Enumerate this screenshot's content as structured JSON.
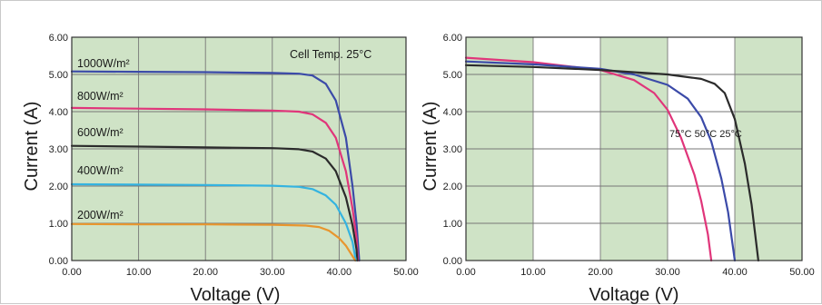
{
  "colors": {
    "plot_bg": "#cfe3c6",
    "white_band": "#ffffff",
    "grid": "#777777",
    "axis": "#333333"
  },
  "chart_data": [
    {
      "type": "line",
      "title": "",
      "xlabel": "Voltage (V)",
      "ylabel": "Current (A)",
      "xlim": [
        0,
        50
      ],
      "ylim": [
        0,
        6
      ],
      "x_ticks": [
        "0.00",
        "10.00",
        "20.00",
        "30.00",
        "40.00",
        "50.00"
      ],
      "y_ticks": [
        "0.00",
        "1.00",
        "2.00",
        "3.00",
        "4.00",
        "5.00",
        "6.00"
      ],
      "grid": true,
      "annotation": "Cell Temp. 25°C",
      "series": [
        {
          "name": "1000W/m²",
          "color": "#3b4aa8",
          "points": [
            [
              0,
              5.08
            ],
            [
              10,
              5.07
            ],
            [
              20,
              5.06
            ],
            [
              30,
              5.04
            ],
            [
              34,
              5.02
            ],
            [
              36,
              4.97
            ],
            [
              38,
              4.75
            ],
            [
              39.5,
              4.3
            ],
            [
              41,
              3.3
            ],
            [
              42,
              2.0
            ],
            [
              42.6,
              1.0
            ],
            [
              43.0,
              0
            ]
          ]
        },
        {
          "name": "800W/m²",
          "color": "#e0357a",
          "points": [
            [
              0,
              4.1
            ],
            [
              10,
              4.08
            ],
            [
              20,
              4.06
            ],
            [
              30,
              4.03
            ],
            [
              34,
              4.0
            ],
            [
              36,
              3.93
            ],
            [
              38,
              3.7
            ],
            [
              39.5,
              3.3
            ],
            [
              41,
              2.4
            ],
            [
              42,
              1.4
            ],
            [
              42.6,
              0.6
            ],
            [
              42.8,
              0
            ]
          ]
        },
        {
          "name": "600W/m²",
          "color": "#2b2b2b",
          "points": [
            [
              0,
              3.08
            ],
            [
              10,
              3.06
            ],
            [
              20,
              3.04
            ],
            [
              30,
              3.02
            ],
            [
              34,
              2.99
            ],
            [
              36,
              2.93
            ],
            [
              38,
              2.74
            ],
            [
              39.5,
              2.4
            ],
            [
              41,
              1.7
            ],
            [
              42,
              0.95
            ],
            [
              42.6,
              0.3
            ],
            [
              42.7,
              0
            ]
          ]
        },
        {
          "name": "400W/m²",
          "color": "#34b3e0",
          "points": [
            [
              0,
              2.05
            ],
            [
              10,
              2.04
            ],
            [
              20,
              2.03
            ],
            [
              30,
              2.01
            ],
            [
              34,
              1.98
            ],
            [
              36,
              1.92
            ],
            [
              38,
              1.75
            ],
            [
              39.5,
              1.5
            ],
            [
              41,
              1.0
            ],
            [
              42,
              0.5
            ],
            [
              42.5,
              0
            ]
          ]
        },
        {
          "name": "200W/m²",
          "color": "#e8962e",
          "points": [
            [
              0,
              0.98
            ],
            [
              10,
              0.97
            ],
            [
              20,
              0.97
            ],
            [
              30,
              0.96
            ],
            [
              35,
              0.94
            ],
            [
              37,
              0.9
            ],
            [
              38.5,
              0.8
            ],
            [
              40,
              0.6
            ],
            [
              41,
              0.4
            ],
            [
              42,
              0.12
            ],
            [
              42.4,
              0
            ]
          ]
        }
      ],
      "series_labels": [
        "1000W/m²",
        "800W/m²",
        "600W/m²",
        "400W/m²",
        "200W/m²"
      ]
    },
    {
      "type": "line",
      "title": "",
      "xlabel": "Voltage (V)",
      "ylabel": "Current (A)",
      "xlim": [
        0,
        50
      ],
      "ylim": [
        0,
        6
      ],
      "x_ticks": [
        "0.00",
        "10.00",
        "20.00",
        "30.00",
        "40.00",
        "50.00"
      ],
      "y_ticks": [
        "0.00",
        "1.00",
        "2.00",
        "3.00",
        "4.00",
        "5.00",
        "6.00"
      ],
      "grid": true,
      "white_bands": [
        [
          10,
          20
        ],
        [
          30,
          40
        ]
      ],
      "temperature_label": "75°C 50°C 25°C",
      "series": [
        {
          "name": "75°C",
          "color": "#e0357a",
          "points": [
            [
              0,
              5.45
            ],
            [
              10,
              5.33
            ],
            [
              20,
              5.12
            ],
            [
              25,
              4.85
            ],
            [
              28,
              4.5
            ],
            [
              30,
              4.05
            ],
            [
              32,
              3.3
            ],
            [
              34,
              2.3
            ],
            [
              35,
              1.6
            ],
            [
              36,
              0.7
            ],
            [
              36.5,
              0
            ]
          ]
        },
        {
          "name": "50°C",
          "color": "#3b4aa8",
          "points": [
            [
              0,
              5.35
            ],
            [
              10,
              5.27
            ],
            [
              20,
              5.15
            ],
            [
              25,
              5.0
            ],
            [
              30,
              4.72
            ],
            [
              33,
              4.35
            ],
            [
              35,
              3.85
            ],
            [
              36.5,
              3.2
            ],
            [
              38,
              2.2
            ],
            [
              39,
              1.3
            ],
            [
              40,
              0
            ]
          ]
        },
        {
          "name": "25°C",
          "color": "#2b2b2b",
          "points": [
            [
              0,
              5.25
            ],
            [
              10,
              5.2
            ],
            [
              20,
              5.12
            ],
            [
              30,
              5.0
            ],
            [
              35,
              4.88
            ],
            [
              37,
              4.75
            ],
            [
              38.5,
              4.5
            ],
            [
              40,
              3.8
            ],
            [
              41.5,
              2.6
            ],
            [
              42.5,
              1.5
            ],
            [
              43.5,
              0
            ]
          ]
        }
      ]
    }
  ]
}
